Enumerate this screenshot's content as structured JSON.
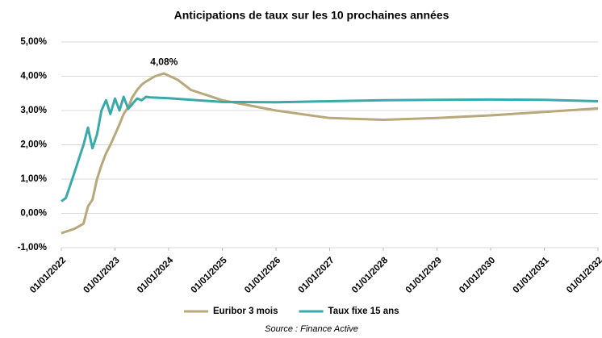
{
  "chart_data": {
    "type": "line",
    "title": "Anticipations de taux sur les 10 prochaines années",
    "source": "Source : Finance Active",
    "grid": true,
    "legend": "bottom",
    "xlim": [
      "01/01/2022",
      "01/01/2032"
    ],
    "xticks": [
      "01/01/2022",
      "01/01/2023",
      "01/01/2024",
      "01/01/2025",
      "01/01/2026",
      "01/01/2027",
      "01/01/2028",
      "01/01/2029",
      "01/01/2030",
      "01/01/2031",
      "01/01/2032"
    ],
    "ylim": [
      -1,
      5
    ],
    "yticks": [
      {
        "value": -1,
        "label": "-1,00%"
      },
      {
        "value": 0,
        "label": "0,00%"
      },
      {
        "value": 1,
        "label": "1,00%"
      },
      {
        "value": 2,
        "label": "2,00%"
      },
      {
        "value": 3,
        "label": "3,00%"
      },
      {
        "value": 4,
        "label": "4,00%"
      },
      {
        "value": 5,
        "label": "5,00%"
      }
    ],
    "series": [
      {
        "name": "Euribor 3 mois",
        "color": "#b8a87c",
        "x": [
          "01/01/2022",
          "01/04/2022",
          "01/06/2022",
          "01/07/2022",
          "01/08/2022",
          "01/09/2022",
          "01/10/2022",
          "01/11/2022",
          "01/12/2022",
          "01/01/2023",
          "01/02/2023",
          "01/03/2023",
          "01/04/2023",
          "01/05/2023",
          "01/06/2023",
          "01/07/2023",
          "01/08/2023",
          "01/10/2023",
          "01/12/2023",
          "01/03/2024",
          "01/06/2024",
          "01/01/2025",
          "01/01/2026",
          "01/01/2027",
          "01/01/2028",
          "01/01/2029",
          "01/01/2030",
          "01/01/2031",
          "01/01/2032"
        ],
        "values": [
          -0.58,
          -0.45,
          -0.3,
          0.2,
          0.4,
          1.0,
          1.4,
          1.75,
          2.0,
          2.3,
          2.6,
          2.9,
          3.1,
          3.4,
          3.6,
          3.75,
          3.85,
          4.0,
          4.08,
          3.9,
          3.6,
          3.3,
          3.0,
          2.78,
          2.73,
          2.78,
          2.86,
          2.96,
          3.06
        ],
        "value_labels": [
          null,
          null,
          null,
          null,
          null,
          null,
          null,
          null,
          null,
          null,
          null,
          null,
          null,
          null,
          null,
          null,
          null,
          null,
          "4,08%",
          null,
          null,
          null,
          null,
          null,
          null,
          null,
          null,
          null,
          null
        ]
      },
      {
        "name": "Taux fixe 15 ans",
        "color": "#3aa9a9",
        "x": [
          "01/01/2022",
          "01/02/2022",
          "01/03/2022",
          "01/04/2022",
          "01/05/2022",
          "01/06/2022",
          "01/07/2022",
          "01/08/2022",
          "01/09/2022",
          "01/10/2022",
          "01/11/2022",
          "01/12/2022",
          "01/01/2023",
          "01/02/2023",
          "01/03/2023",
          "01/04/2023",
          "01/05/2023",
          "01/06/2023",
          "01/07/2023",
          "01/08/2023",
          "01/09/2023",
          "01/01/2024",
          "01/01/2025",
          "01/01/2026",
          "01/01/2027",
          "01/01/2028",
          "01/01/2029",
          "01/01/2030",
          "01/01/2031",
          "01/01/2032"
        ],
        "values": [
          0.35,
          0.45,
          0.8,
          1.2,
          1.6,
          2.0,
          2.5,
          1.9,
          2.3,
          3.0,
          3.3,
          2.9,
          3.35,
          3.0,
          3.4,
          3.05,
          3.2,
          3.35,
          3.3,
          3.4,
          3.38,
          3.36,
          3.25,
          3.24,
          3.27,
          3.3,
          3.31,
          3.32,
          3.31,
          3.27
        ]
      }
    ]
  }
}
